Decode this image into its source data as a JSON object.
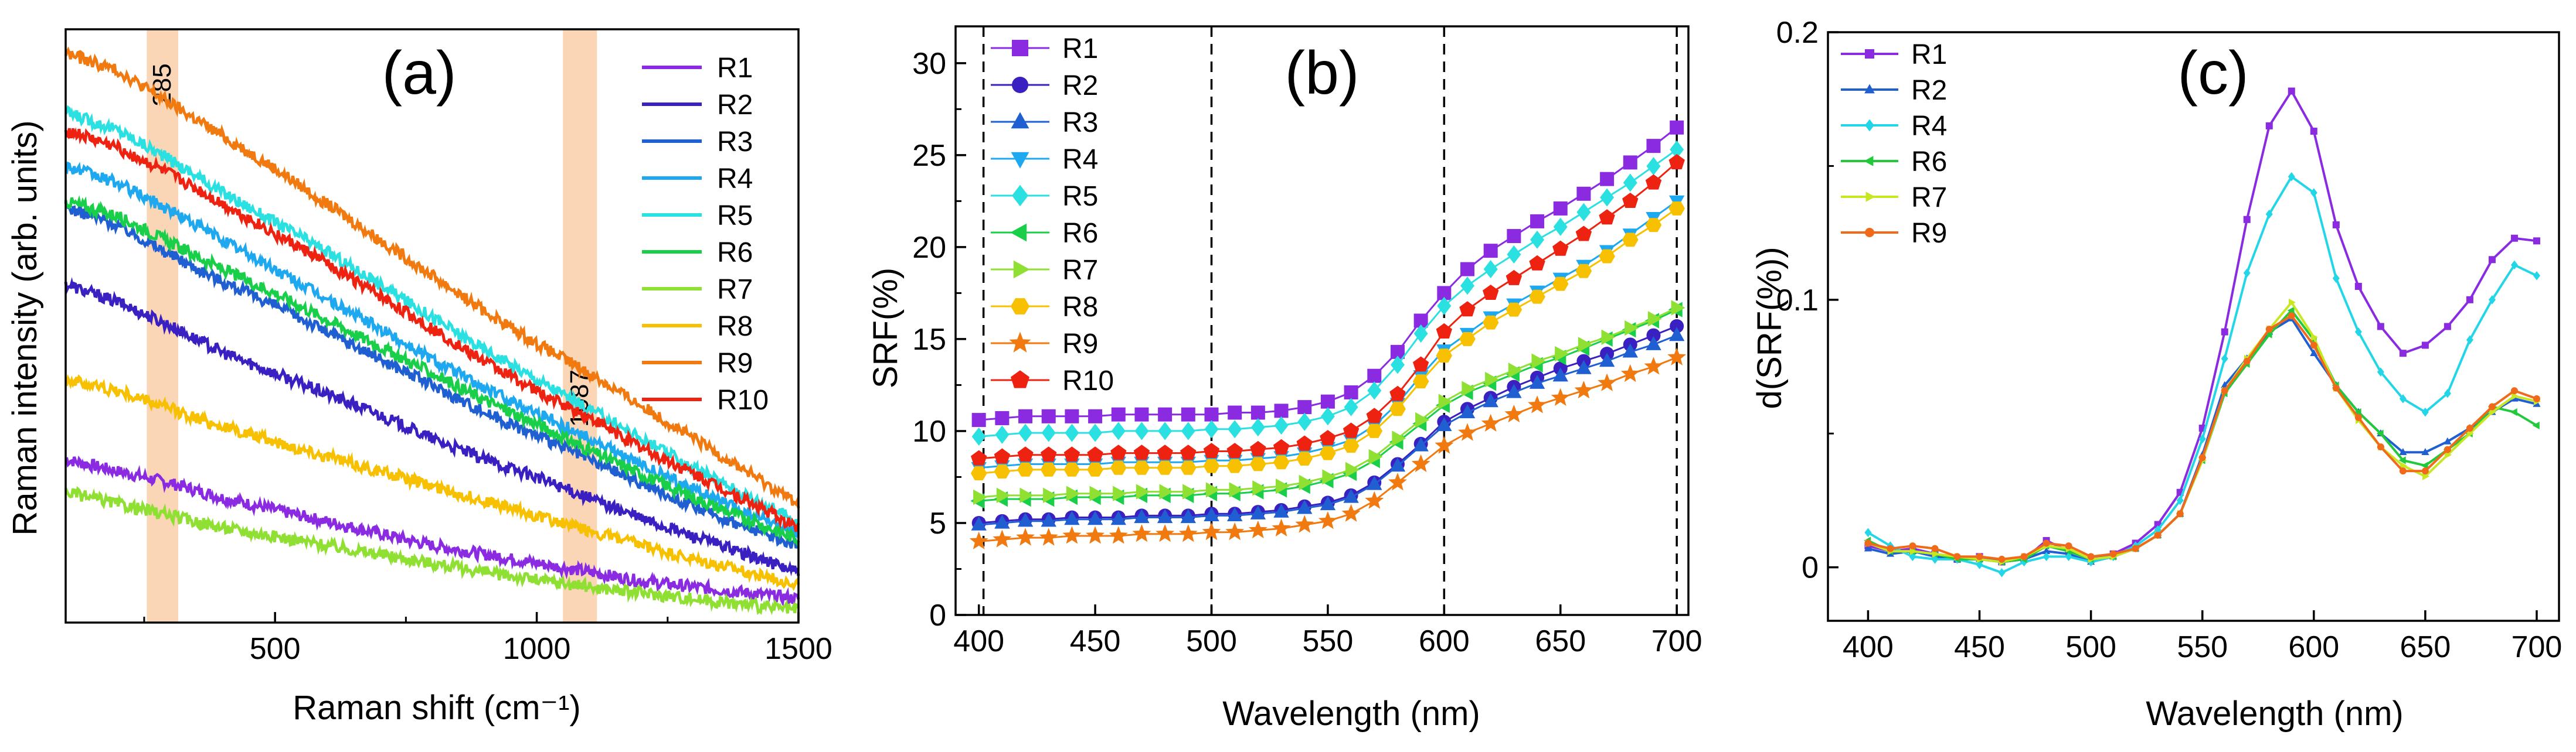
{
  "chart_data": [
    {
      "type": "line",
      "panel_label": "(a)",
      "xlabel": "Raman shift (cm⁻¹)",
      "ylabel": "Raman intensity (arb. units)",
      "xlim": [
        100,
        1500
      ],
      "ylim": [
        0,
        1
      ],
      "xticks": [
        500,
        1000,
        1500
      ],
      "xtick_labels": [
        "500",
        "1000",
        "1500"
      ],
      "yticks": [],
      "highlights": [
        {
          "x0": 255,
          "x1": 315,
          "label": "285"
        },
        {
          "x0": 1050,
          "x1": 1115,
          "label": "1087"
        }
      ],
      "x": [
        100,
        200,
        300,
        400,
        500,
        600,
        700,
        800,
        900,
        1000,
        1100,
        1200,
        1300,
        1400,
        1500
      ],
      "series": [
        {
          "name": "R1",
          "color": "#8a2be2",
          "values": [
            0.275,
            0.255,
            0.235,
            0.21,
            0.19,
            0.17,
            0.15,
            0.13,
            0.115,
            0.1,
            0.085,
            0.07,
            0.06,
            0.05,
            0.04
          ]
        },
        {
          "name": "R2",
          "color": "#3a1fc1",
          "values": [
            0.57,
            0.54,
            0.5,
            0.455,
            0.42,
            0.385,
            0.35,
            0.31,
            0.275,
            0.245,
            0.21,
            0.175,
            0.145,
            0.115,
            0.085
          ]
        },
        {
          "name": "R3",
          "color": "#1f5fd1",
          "values": [
            0.7,
            0.67,
            0.62,
            0.575,
            0.535,
            0.49,
            0.445,
            0.4,
            0.355,
            0.315,
            0.275,
            0.235,
            0.195,
            0.16,
            0.13
          ]
        },
        {
          "name": "R4",
          "color": "#1ea8ef",
          "values": [
            0.77,
            0.74,
            0.695,
            0.645,
            0.595,
            0.545,
            0.495,
            0.445,
            0.395,
            0.355,
            0.31,
            0.265,
            0.225,
            0.185,
            0.15
          ]
        },
        {
          "name": "R5",
          "color": "#2ae0e0",
          "values": [
            0.86,
            0.83,
            0.78,
            0.725,
            0.675,
            0.625,
            0.57,
            0.515,
            0.46,
            0.41,
            0.36,
            0.31,
            0.26,
            0.215,
            0.17
          ]
        },
        {
          "name": "R6",
          "color": "#19cf4a",
          "values": [
            0.71,
            0.685,
            0.64,
            0.595,
            0.555,
            0.51,
            0.465,
            0.42,
            0.375,
            0.335,
            0.29,
            0.25,
            0.21,
            0.175,
            0.14
          ]
        },
        {
          "name": "R7",
          "color": "#8fe033",
          "values": [
            0.22,
            0.2,
            0.18,
            0.16,
            0.145,
            0.13,
            0.115,
            0.1,
            0.085,
            0.072,
            0.06,
            0.05,
            0.04,
            0.03,
            0.02
          ]
        },
        {
          "name": "R8",
          "color": "#f7c000",
          "values": [
            0.41,
            0.39,
            0.36,
            0.33,
            0.305,
            0.28,
            0.255,
            0.23,
            0.205,
            0.18,
            0.155,
            0.13,
            0.105,
            0.085,
            0.065
          ]
        },
        {
          "name": "R9",
          "color": "#f07a10",
          "values": [
            0.96,
            0.93,
            0.875,
            0.82,
            0.765,
            0.705,
            0.645,
            0.585,
            0.525,
            0.47,
            0.42,
            0.365,
            0.31,
            0.255,
            0.2
          ]
        },
        {
          "name": "R10",
          "color": "#ee2211",
          "values": [
            0.83,
            0.8,
            0.755,
            0.705,
            0.655,
            0.605,
            0.55,
            0.495,
            0.44,
            0.39,
            0.345,
            0.295,
            0.25,
            0.205,
            0.16
          ]
        }
      ]
    },
    {
      "type": "line",
      "panel_label": "(b)",
      "xlabel": "Wavelength (nm)",
      "ylabel": "SRF(%)",
      "xlim": [
        390,
        705
      ],
      "ylim": [
        0,
        32
      ],
      "xticks": [
        400,
        450,
        500,
        550,
        600,
        650,
        700
      ],
      "xtick_labels": [
        "400",
        "450",
        "500",
        "550",
        "600",
        "650",
        "700"
      ],
      "yticks": [
        0,
        5,
        10,
        15,
        20,
        25,
        30
      ],
      "ytick_labels": [
        "0",
        "5",
        "10",
        "15",
        "20",
        "25",
        "30"
      ],
      "vlines": [
        402,
        500,
        600,
        700
      ],
      "x": [
        400,
        410,
        420,
        430,
        440,
        450,
        460,
        470,
        480,
        490,
        500,
        510,
        520,
        530,
        540,
        550,
        560,
        570,
        580,
        590,
        600,
        610,
        620,
        630,
        640,
        650,
        660,
        670,
        680,
        690,
        700
      ],
      "series": [
        {
          "name": "R1",
          "color": "#8a2be2",
          "marker": "square",
          "values": [
            10.6,
            10.7,
            10.8,
            10.8,
            10.8,
            10.8,
            10.9,
            10.9,
            10.9,
            10.9,
            10.9,
            11.0,
            11.0,
            11.1,
            11.3,
            11.6,
            12.1,
            13.0,
            14.3,
            16.0,
            17.5,
            18.8,
            19.8,
            20.6,
            21.4,
            22.1,
            22.9,
            23.7,
            24.6,
            25.5,
            26.5
          ]
        },
        {
          "name": "R2",
          "color": "#3a1fc1",
          "marker": "circle",
          "values": [
            5.0,
            5.1,
            5.2,
            5.2,
            5.3,
            5.3,
            5.3,
            5.4,
            5.4,
            5.4,
            5.5,
            5.5,
            5.6,
            5.7,
            5.9,
            6.1,
            6.5,
            7.2,
            8.2,
            9.3,
            10.5,
            11.2,
            11.8,
            12.4,
            12.9,
            13.4,
            13.8,
            14.2,
            14.7,
            15.2,
            15.7
          ]
        },
        {
          "name": "R3",
          "color": "#1f5fd1",
          "marker": "triangle-up",
          "values": [
            4.9,
            5.0,
            5.1,
            5.1,
            5.2,
            5.2,
            5.2,
            5.3,
            5.3,
            5.3,
            5.4,
            5.4,
            5.5,
            5.6,
            5.8,
            6.0,
            6.4,
            7.1,
            8.1,
            9.2,
            10.3,
            11.0,
            11.6,
            12.1,
            12.6,
            13.0,
            13.4,
            13.8,
            14.3,
            14.7,
            15.2
          ]
        },
        {
          "name": "R4",
          "color": "#1ea8ef",
          "marker": "triangle-down",
          "values": [
            8.0,
            8.1,
            8.2,
            8.2,
            8.2,
            8.2,
            8.3,
            8.3,
            8.3,
            8.3,
            8.4,
            8.4,
            8.5,
            8.6,
            8.8,
            9.1,
            9.5,
            10.3,
            11.5,
            13.0,
            14.4,
            15.3,
            16.2,
            16.9,
            17.6,
            18.3,
            19.0,
            19.8,
            20.7,
            21.6,
            22.5
          ]
        },
        {
          "name": "R5",
          "color": "#2ae0e0",
          "marker": "diamond",
          "values": [
            9.7,
            9.8,
            9.9,
            9.9,
            9.9,
            9.9,
            10.0,
            10.0,
            10.0,
            10.0,
            10.1,
            10.1,
            10.2,
            10.3,
            10.5,
            10.8,
            11.3,
            12.2,
            13.6,
            15.3,
            16.8,
            17.9,
            18.8,
            19.6,
            20.4,
            21.1,
            21.9,
            22.7,
            23.5,
            24.4,
            25.3
          ]
        },
        {
          "name": "R6",
          "color": "#19cf4a",
          "marker": "triangle-left",
          "values": [
            6.2,
            6.3,
            6.3,
            6.3,
            6.4,
            6.4,
            6.4,
            6.5,
            6.5,
            6.5,
            6.6,
            6.6,
            6.7,
            6.8,
            7.0,
            7.3,
            7.7,
            8.4,
            9.4,
            10.4,
            11.4,
            12.1,
            12.6,
            13.1,
            13.6,
            14.0,
            14.5,
            15.0,
            15.5,
            16.0,
            16.6
          ]
        },
        {
          "name": "R7",
          "color": "#8fe033",
          "marker": "triangle-right",
          "values": [
            6.4,
            6.5,
            6.5,
            6.5,
            6.6,
            6.6,
            6.6,
            6.7,
            6.7,
            6.7,
            6.8,
            6.8,
            6.9,
            7.0,
            7.2,
            7.5,
            7.9,
            8.6,
            9.6,
            10.6,
            11.6,
            12.3,
            12.8,
            13.3,
            13.8,
            14.2,
            14.7,
            15.1,
            15.6,
            16.1,
            16.7
          ]
        },
        {
          "name": "R8",
          "color": "#f7c000",
          "marker": "hexagon",
          "values": [
            7.7,
            7.8,
            7.9,
            7.9,
            7.9,
            7.9,
            8.0,
            8.0,
            8.0,
            8.0,
            8.1,
            8.1,
            8.2,
            8.3,
            8.5,
            8.8,
            9.2,
            10.0,
            11.2,
            12.7,
            14.1,
            15.0,
            15.9,
            16.6,
            17.3,
            18.0,
            18.7,
            19.5,
            20.4,
            21.2,
            22.1
          ]
        },
        {
          "name": "R9",
          "color": "#f07a10",
          "marker": "star",
          "values": [
            4.0,
            4.1,
            4.2,
            4.2,
            4.3,
            4.3,
            4.3,
            4.4,
            4.4,
            4.4,
            4.5,
            4.5,
            4.6,
            4.7,
            4.9,
            5.1,
            5.5,
            6.2,
            7.2,
            8.2,
            9.2,
            9.9,
            10.4,
            10.9,
            11.4,
            11.8,
            12.2,
            12.6,
            13.1,
            13.5,
            14.0
          ]
        },
        {
          "name": "R10",
          "color": "#ee2211",
          "marker": "pentagon",
          "values": [
            8.5,
            8.6,
            8.7,
            8.7,
            8.7,
            8.7,
            8.8,
            8.8,
            8.8,
            8.8,
            8.9,
            8.9,
            9.0,
            9.1,
            9.3,
            9.6,
            10.0,
            10.8,
            12.0,
            13.6,
            15.4,
            16.6,
            17.5,
            18.3,
            19.1,
            19.9,
            20.7,
            21.6,
            22.5,
            23.5,
            24.6
          ]
        }
      ]
    },
    {
      "type": "line",
      "panel_label": "(c)",
      "xlabel": "Wavelength (nm)",
      "ylabel": "d(SRF(%))",
      "xlim": [
        382,
        710
      ],
      "ylim": [
        -0.02,
        0.2
      ],
      "xticks": [
        400,
        450,
        500,
        550,
        600,
        650,
        700
      ],
      "xtick_labels": [
        "400",
        "450",
        "500",
        "550",
        "600",
        "650",
        "700"
      ],
      "yticks": [
        0,
        0.1,
        0.2
      ],
      "ytick_labels": [
        "0",
        "0.1",
        "0.2"
      ],
      "x": [
        400,
        410,
        420,
        430,
        440,
        450,
        460,
        470,
        480,
        490,
        500,
        510,
        520,
        530,
        540,
        550,
        560,
        570,
        580,
        590,
        600,
        610,
        620,
        630,
        640,
        650,
        660,
        670,
        680,
        690,
        700
      ],
      "series": [
        {
          "name": "R1",
          "color": "#8a2be2",
          "values": [
            0.008,
            0.006,
            0.007,
            0.005,
            0.003,
            0.004,
            0.002,
            0.003,
            0.01,
            0.006,
            0.003,
            0.005,
            0.009,
            0.016,
            0.028,
            0.052,
            0.088,
            0.13,
            0.165,
            0.178,
            0.163,
            0.128,
            0.105,
            0.09,
            0.08,
            0.083,
            0.09,
            0.1,
            0.115,
            0.123,
            0.122
          ]
        },
        {
          "name": "R2",
          "color": "#1f5fd1",
          "values": [
            0.007,
            0.005,
            0.006,
            0.004,
            0.003,
            0.003,
            0.002,
            0.003,
            0.006,
            0.005,
            0.002,
            0.004,
            0.007,
            0.012,
            0.02,
            0.042,
            0.068,
            0.078,
            0.088,
            0.093,
            0.08,
            0.068,
            0.058,
            0.05,
            0.043,
            0.043,
            0.047,
            0.052,
            0.058,
            0.063,
            0.061
          ]
        },
        {
          "name": "R4",
          "color": "#22d6e8",
          "values": [
            0.013,
            0.008,
            0.004,
            0.003,
            0.003,
            0.001,
            -0.002,
            0.002,
            0.004,
            0.004,
            0.002,
            0.004,
            0.008,
            0.014,
            0.025,
            0.048,
            0.078,
            0.11,
            0.132,
            0.146,
            0.14,
            0.108,
            0.088,
            0.073,
            0.063,
            0.058,
            0.065,
            0.085,
            0.1,
            0.113,
            0.109
          ]
        },
        {
          "name": "R6",
          "color": "#22c93a",
          "values": [
            0.01,
            0.006,
            0.006,
            0.005,
            0.003,
            0.003,
            0.002,
            0.003,
            0.008,
            0.006,
            0.003,
            0.004,
            0.007,
            0.012,
            0.02,
            0.04,
            0.065,
            0.076,
            0.087,
            0.096,
            0.085,
            0.068,
            0.058,
            0.05,
            0.04,
            0.038,
            0.044,
            0.05,
            0.06,
            0.058,
            0.053
          ]
        },
        {
          "name": "R7",
          "color": "#c8e622",
          "values": [
            0.009,
            0.006,
            0.006,
            0.005,
            0.004,
            0.003,
            0.002,
            0.004,
            0.008,
            0.007,
            0.003,
            0.004,
            0.007,
            0.012,
            0.02,
            0.04,
            0.066,
            0.078,
            0.089,
            0.099,
            0.086,
            0.067,
            0.055,
            0.045,
            0.038,
            0.034,
            0.042,
            0.05,
            0.058,
            0.064,
            0.062
          ]
        },
        {
          "name": "R9",
          "color": "#f06a1a",
          "values": [
            0.009,
            0.007,
            0.008,
            0.007,
            0.004,
            0.004,
            0.003,
            0.004,
            0.009,
            0.008,
            0.004,
            0.005,
            0.007,
            0.012,
            0.02,
            0.041,
            0.066,
            0.077,
            0.089,
            0.094,
            0.083,
            0.067,
            0.056,
            0.045,
            0.036,
            0.036,
            0.044,
            0.052,
            0.06,
            0.066,
            0.063
          ]
        }
      ]
    }
  ]
}
